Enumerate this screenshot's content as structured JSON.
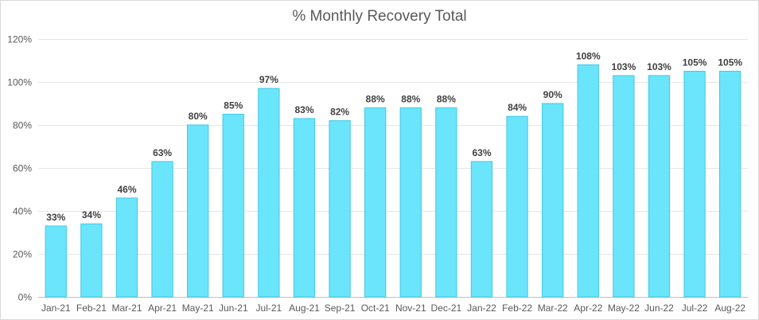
{
  "chart_data": {
    "type": "bar",
    "title": "% Monthly Recovery Total",
    "xlabel": "",
    "ylabel": "",
    "ylim": [
      0,
      120
    ],
    "yticks": [
      0,
      20,
      40,
      60,
      80,
      100,
      120
    ],
    "ytick_labels": [
      "0%",
      "20%",
      "40%",
      "60%",
      "80%",
      "100%",
      "120%"
    ],
    "grid": true,
    "legend": "none",
    "bar_color": "#6be5fc",
    "bar_edge_color": "#3fc9e6",
    "categories": [
      "Jan-21",
      "Feb-21",
      "Mar-21",
      "Apr-21",
      "May-21",
      "Jun-21",
      "Jul-21",
      "Aug-21",
      "Sep-21",
      "Oct-21",
      "Nov-21",
      "Dec-21",
      "Jan-22",
      "Feb-22",
      "Mar-22",
      "Apr-22",
      "May-22",
      "Jun-22",
      "Jul-22",
      "Aug-22"
    ],
    "values": [
      33,
      34,
      46,
      63,
      80,
      85,
      97,
      83,
      82,
      88,
      88,
      88,
      63,
      84,
      90,
      108,
      103,
      103,
      105,
      105
    ],
    "data_labels": [
      "33%",
      "34%",
      "46%",
      "63%",
      "80%",
      "85%",
      "97%",
      "83%",
      "82%",
      "88%",
      "88%",
      "88%",
      "63%",
      "84%",
      "90%",
      "108%",
      "103%",
      "103%",
      "105%",
      "105%"
    ]
  }
}
